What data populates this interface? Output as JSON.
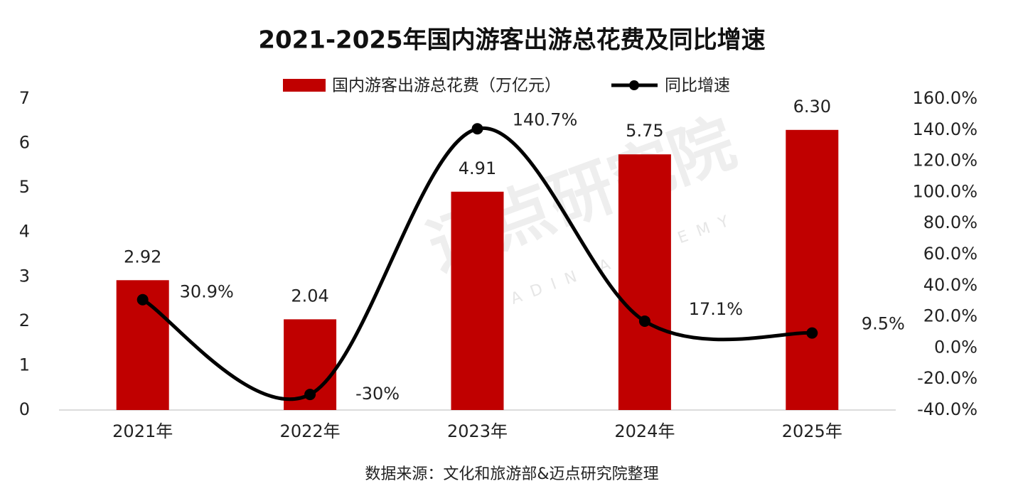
{
  "chart_data": {
    "type": "bar-line",
    "title": "2021-2025年国内游客出游总花费及同比增速",
    "categories": [
      "2021年",
      "2022年",
      "2023年",
      "2024年",
      "2025年"
    ],
    "series": [
      {
        "name": "国内游客出游总花费（万亿元）",
        "type": "bar",
        "color": "#c00000",
        "values": [
          2.92,
          2.04,
          4.91,
          5.75,
          6.3
        ],
        "value_labels": [
          "2.92",
          "2.04",
          "4.91",
          "5.75",
          "6.30"
        ]
      },
      {
        "name": "同比增速",
        "type": "line",
        "axis": "y2",
        "color": "#000000",
        "values": [
          30.9,
          -30,
          140.7,
          17.1,
          9.5
        ],
        "value_labels": [
          "30.9%",
          "-30%",
          "140.7%",
          "17.1%",
          "9.5%"
        ]
      }
    ],
    "ylim": [
      0,
      7
    ],
    "yticks": [
      0,
      1,
      2,
      3,
      4,
      5,
      6,
      7
    ],
    "y2lim": [
      -40,
      160
    ],
    "y2ticks": [
      {
        "value": -40,
        "label": "-40.0%"
      },
      {
        "value": -20,
        "label": "-20.0%"
      },
      {
        "value": 0,
        "label": "0.0%"
      },
      {
        "value": 20,
        "label": "20.0%"
      },
      {
        "value": 40,
        "label": "40.0%"
      },
      {
        "value": 60,
        "label": "60.0%"
      },
      {
        "value": 80,
        "label": "80.0%"
      },
      {
        "value": 100,
        "label": "100.0%"
      },
      {
        "value": 120,
        "label": "120.0%"
      },
      {
        "value": 140,
        "label": "140.0%"
      },
      {
        "value": 160,
        "label": "160.0%"
      }
    ],
    "grid": false,
    "legend": "top",
    "watermark": [
      "迈点研究院",
      "MEADIN ACADEMY"
    ],
    "source": "数据来源：文化和旅游部&迈点研究院整理"
  }
}
